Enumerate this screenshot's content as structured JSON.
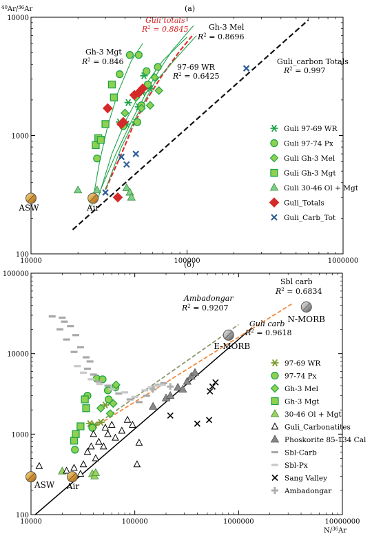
{
  "chart_data": [
    {
      "type": "scatter",
      "panel_label": "(a)",
      "ylabel": "40Ar/36Ar",
      "ylabel_sup": "40",
      "ylabel_mid": "Ar/",
      "ylabel_sup2": "36",
      "ylabel_tail": "Ar",
      "x_scale": "log",
      "y_scale": "log",
      "xlim": [
        10000,
        1000000
      ],
      "ylim": [
        100,
        10000
      ],
      "x_ticks": [
        10000,
        100000,
        1000000
      ],
      "x_tick_labels": [
        "10000",
        "100000",
        "1000000"
      ],
      "y_ticks": [
        100,
        1000,
        10000
      ],
      "y_tick_labels": [
        "100",
        "1000",
        "10000"
      ],
      "legend": {
        "position": "right",
        "entries": [
          {
            "label": "Guli 97-69 WR",
            "marker": "asterisk",
            "color": "#1fa34a"
          },
          {
            "label": "Guli 97-74 Px",
            "marker": "circle",
            "color": "#1fa34a"
          },
          {
            "label": "Guli Gh-3 Mel",
            "marker": "diamond",
            "color": "#1fa34a"
          },
          {
            "label": "Guli Gh-3 Mgt",
            "marker": "square",
            "color": "#1fa34a"
          },
          {
            "label": "Guli 30-46 Ol + Mgt",
            "marker": "triangle",
            "color": "#7dcf8a"
          },
          {
            "label": "Guli_Totals",
            "marker": "diamond",
            "color": "#d42a2a"
          },
          {
            "label": "Guli_Carb_Tot",
            "marker": "x",
            "color": "#2e5d96"
          }
        ]
      },
      "series": [
        {
          "name": "Guli 97-69 WR",
          "marker": "asterisk",
          "color": "#1fa34a",
          "points": [
            [
              37000,
              1300
            ],
            [
              41000,
              1250
            ],
            [
              47000,
              1300
            ],
            [
              49000,
              1750
            ],
            [
              52000,
              2300
            ],
            [
              53000,
              3200
            ],
            [
              58000,
              2500
            ],
            [
              42000,
              1900
            ]
          ]
        },
        {
          "name": "Guli 97-74 Px",
          "marker": "circle",
          "color": "#1fa34a",
          "points": [
            [
              26500,
              640
            ],
            [
              37000,
              3300
            ],
            [
              43000,
              4800
            ],
            [
              49000,
              4800
            ],
            [
              55000,
              3500
            ],
            [
              65000,
              3800
            ],
            [
              56000,
              2700
            ],
            [
              51000,
              1800
            ],
            [
              48000,
              1300
            ],
            [
              39000,
              1200
            ]
          ]
        },
        {
          "name": "Guli Gh-3 Mel",
          "marker": "diamond",
          "color": "#1fa34a",
          "points": [
            [
              47000,
              2100
            ],
            [
              58000,
              1800
            ],
            [
              66000,
              2400
            ],
            [
              62000,
              3100
            ],
            [
              51000,
              1700
            ],
            [
              40000,
              1550
            ]
          ]
        },
        {
          "name": "Guli Gh-3 Mgt",
          "marker": "square",
          "color": "#1fa34a",
          "points": [
            [
              26000,
              830
            ],
            [
              27000,
              950
            ],
            [
              30000,
              1250
            ],
            [
              34000,
              2100
            ],
            [
              33000,
              2700
            ],
            [
              28000,
              920
            ]
          ]
        },
        {
          "name": "Guli 30-46 Ol + Mgt",
          "marker": "triangle",
          "color": "#7dcf8a",
          "points": [
            [
              20000,
              345
            ],
            [
              26500,
              345
            ],
            [
              41000,
              360
            ],
            [
              43000,
              330
            ],
            [
              44000,
              300
            ]
          ]
        },
        {
          "name": "Guli_Totals",
          "marker": "diamond",
          "color": "#d42a2a",
          "points": [
            [
              31000,
              1700
            ],
            [
              38000,
              1250
            ],
            [
              39000,
              1300
            ],
            [
              46000,
              2200
            ],
            [
              49000,
              2300
            ],
            [
              52000,
              2500
            ],
            [
              36000,
              300
            ]
          ]
        },
        {
          "name": "Guli_Carb_Tot",
          "marker": "x",
          "color": "#2e5d96",
          "points": [
            [
              30000,
              330
            ],
            [
              38000,
              660
            ],
            [
              41000,
              570
            ],
            [
              47000,
              700
            ],
            [
              240000,
              3700
            ]
          ]
        }
      ],
      "reference_points": [
        {
          "label": "ASW",
          "x": 10000,
          "y": 295
        },
        {
          "label": "Air",
          "x": 25000,
          "y": 295
        }
      ],
      "fit_lines": [
        {
          "label": "Guli totals",
          "r2": "R2 = 0.8845",
          "r2_value": "0.8845",
          "color": "#e53030",
          "style": "dashed"
        },
        {
          "label": "Gh-3 Mel",
          "r2": "R2 = 0.8696",
          "r2_value": "0.8696",
          "color": "#1fa34a",
          "style": "solid"
        },
        {
          "label": "Gh-3 Mgt",
          "r2": "R2 = 0.846",
          "r2_value": "0.846",
          "color": "#1fa34a",
          "style": "solid"
        },
        {
          "label": "97-69 WR",
          "r2": "R2 = 0.6425",
          "r2_value": "0.6425",
          "color": "#1fa34a",
          "style": "solid"
        },
        {
          "label": "Guli_carbon Totals",
          "r2": "R2 = 0.997",
          "r2_value": "0.997",
          "color": "#111111",
          "style": "dashed"
        }
      ]
    },
    {
      "type": "scatter",
      "panel_label": "(б)",
      "xlabel": "N/36Ar",
      "xlabel_head": "N/",
      "xlabel_sup": "36",
      "xlabel_tail": "Ar",
      "x_scale": "log",
      "y_scale": "log",
      "xlim": [
        10000,
        10000000
      ],
      "ylim": [
        100,
        100000
      ],
      "x_ticks": [
        10000,
        100000,
        1000000,
        10000000
      ],
      "x_tick_labels": [
        "10000",
        "100000",
        "1000000",
        "10000000"
      ],
      "y_ticks": [
        100,
        1000,
        10000,
        100000
      ],
      "y_tick_labels": [
        "100",
        "1000",
        "10000",
        "100000"
      ],
      "legend": {
        "position": "right",
        "entries": [
          {
            "label": "97-69 WR",
            "marker": "asterisk",
            "color": "#7a9a2a"
          },
          {
            "label": "97-74 Px",
            "marker": "circle",
            "color": "#1fa34a"
          },
          {
            "label": "Gh-3 Mel",
            "marker": "diamond",
            "color": "#1fa34a"
          },
          {
            "label": "Gh-3 Mgt",
            "marker": "square",
            "color": "#1fa34a"
          },
          {
            "label": "30-46 Ol + Mgt",
            "marker": "triangle",
            "color": "#9fd060"
          },
          {
            "label": "Guli_Carbonatites",
            "marker": "triangle-open",
            "color": "#000000"
          },
          {
            "label": "Phoskorite 85-134 Cal",
            "marker": "triangle",
            "color": "#888888"
          },
          {
            "label": "Sbl-Carb",
            "marker": "dash",
            "color": "#a8a8a8"
          },
          {
            "label": "Sbl-Px",
            "marker": "dash",
            "color": "#c8c8c8"
          },
          {
            "label": "Sang Valley",
            "marker": "x",
            "color": "#000000"
          },
          {
            "label": "Ambadongar",
            "marker": "plus",
            "color": "#b0b0b0"
          }
        ]
      },
      "series": [
        {
          "name": "97-69 WR",
          "marker": "asterisk",
          "color": "#7a9a2a",
          "points": [
            [
              37000,
              1350
            ],
            [
              41000,
              1300
            ],
            [
              47000,
              1400
            ],
            [
              52000,
              2300
            ],
            [
              58000,
              2500
            ]
          ]
        },
        {
          "name": "97-74 Px",
          "marker": "circle",
          "color": "#1fa34a",
          "points": [
            [
              26500,
              640
            ],
            [
              35000,
              3000
            ],
            [
              43000,
              4900
            ],
            [
              49000,
              4800
            ],
            [
              55000,
              3500
            ],
            [
              65000,
              3800
            ],
            [
              56000,
              2700
            ],
            [
              39000,
              1200
            ]
          ]
        },
        {
          "name": "Gh-3 Mel",
          "marker": "diamond",
          "color": "#1fa34a",
          "points": [
            [
              47000,
              2100
            ],
            [
              58000,
              1800
            ],
            [
              66000,
              4100
            ],
            [
              62000,
              2400
            ]
          ]
        },
        {
          "name": "Gh-3 Mgt",
          "marker": "square",
          "color": "#1fa34a",
          "points": [
            [
              26000,
              830
            ],
            [
              27000,
              1000
            ],
            [
              30000,
              1250
            ],
            [
              34000,
              2100
            ],
            [
              33000,
              2700
            ]
          ]
        },
        {
          "name": "30-46 Ol + Mgt",
          "marker": "triangle",
          "color": "#9fd060",
          "points": [
            [
              20000,
              345
            ],
            [
              39000,
              320
            ],
            [
              41000,
              300
            ],
            [
              42000,
              330
            ]
          ]
        },
        {
          "name": "Guli_Carbonatites",
          "marker": "triangle-open",
          "color": "#000000",
          "points": [
            [
              12000,
              400
            ],
            [
              22000,
              350
            ],
            [
              26000,
              380
            ],
            [
              30000,
              320
            ],
            [
              32000,
              420
            ],
            [
              35000,
              600
            ],
            [
              38000,
              700
            ],
            [
              42000,
              500
            ],
            [
              45000,
              800
            ],
            [
              50000,
              700
            ],
            [
              55000,
              1000
            ],
            [
              60000,
              1300
            ],
            [
              65000,
              900
            ],
            [
              75000,
              1100
            ],
            [
              85000,
              1500
            ],
            [
              95000,
              1300
            ],
            [
              110000,
              780
            ],
            [
              105000,
              420
            ],
            [
              40000,
              1000
            ],
            [
              52000,
              1200
            ]
          ]
        },
        {
          "name": "Phoskorite 85-134 Cal",
          "marker": "triangle",
          "color": "#888888",
          "points": [
            [
              150000,
              2200
            ],
            [
              200000,
              2800
            ],
            [
              220000,
              3000
            ],
            [
              260000,
              3800
            ],
            [
              290000,
              3600
            ],
            [
              320000,
              4500
            ],
            [
              350000,
              5200
            ],
            [
              380000,
              5800
            ]
          ]
        },
        {
          "name": "Sbl-Carb",
          "marker": "dash",
          "color": "#a8a8a8",
          "points": [
            [
              16000,
              29000
            ],
            [
              20000,
              28000
            ],
            [
              21000,
              25000
            ],
            [
              24000,
              22000
            ],
            [
              19000,
              20000
            ],
            [
              27000,
              17000
            ],
            [
              22000,
              15000
            ],
            [
              30000,
              12000
            ],
            [
              26000,
              10500
            ],
            [
              34000,
              9000
            ],
            [
              37000,
              8000
            ],
            [
              35000,
              6500
            ],
            [
              40000,
              5500
            ],
            [
              45000,
              4500
            ],
            [
              55000,
              4000
            ],
            [
              70000,
              3200
            ],
            [
              90000,
              2700
            ],
            [
              110000,
              2500
            ],
            [
              130000,
              3000
            ],
            [
              150000,
              3600
            ],
            [
              170000,
              4100
            ],
            [
              190000,
              4300
            ]
          ]
        },
        {
          "name": "Sbl-Px",
          "marker": "dash",
          "color": "#c8c8c8",
          "points": [
            [
              28000,
              7000
            ],
            [
              32000,
              5800
            ],
            [
              38000,
              4800
            ],
            [
              46000,
              4200
            ],
            [
              60000,
              3600
            ],
            [
              80000,
              3300
            ],
            [
              100000,
              2900
            ],
            [
              125000,
              3500
            ],
            [
              145000,
              3800
            ],
            [
              165000,
              4000
            ],
            [
              185000,
              4100
            ]
          ]
        },
        {
          "name": "Sang Valley",
          "marker": "x",
          "color": "#000000",
          "points": [
            [
              220000,
              1700
            ],
            [
              400000,
              1350
            ],
            [
              520000,
              1500
            ],
            [
              530000,
              3400
            ],
            [
              560000,
              3900
            ],
            [
              600000,
              4400
            ]
          ]
        },
        {
          "name": "Ambadongar",
          "marker": "plus",
          "color": "#b0b0b0",
          "points": [
            [
              150000,
              3600
            ],
            [
              220000,
              3900
            ]
          ]
        }
      ],
      "reference_points": [
        {
          "label": "ASW",
          "x": 10000,
          "y": 295
        },
        {
          "label": "Air",
          "x": 25000,
          "y": 295
        },
        {
          "label": "E-MORB",
          "x": 800000,
          "y": 17000
        },
        {
          "label": "N-MORB",
          "x": 4500000,
          "y": 38000
        }
      ],
      "fit_lines": [
        {
          "label": "Sbl carb",
          "r2": "R2 = 0.6834",
          "r2_value": "0.6834",
          "color": "#f08a3a",
          "style": "dashed"
        },
        {
          "label": "Ambadongar",
          "r2": "R2 = 0.9207",
          "r2_value": "0.9207",
          "color": "#8a9a6a",
          "style": "dashed"
        },
        {
          "label": "Guli carb",
          "r2": "R2 = 0.9618",
          "r2_value": "0.9618",
          "color": "#000000",
          "style": "solid"
        }
      ]
    }
  ]
}
